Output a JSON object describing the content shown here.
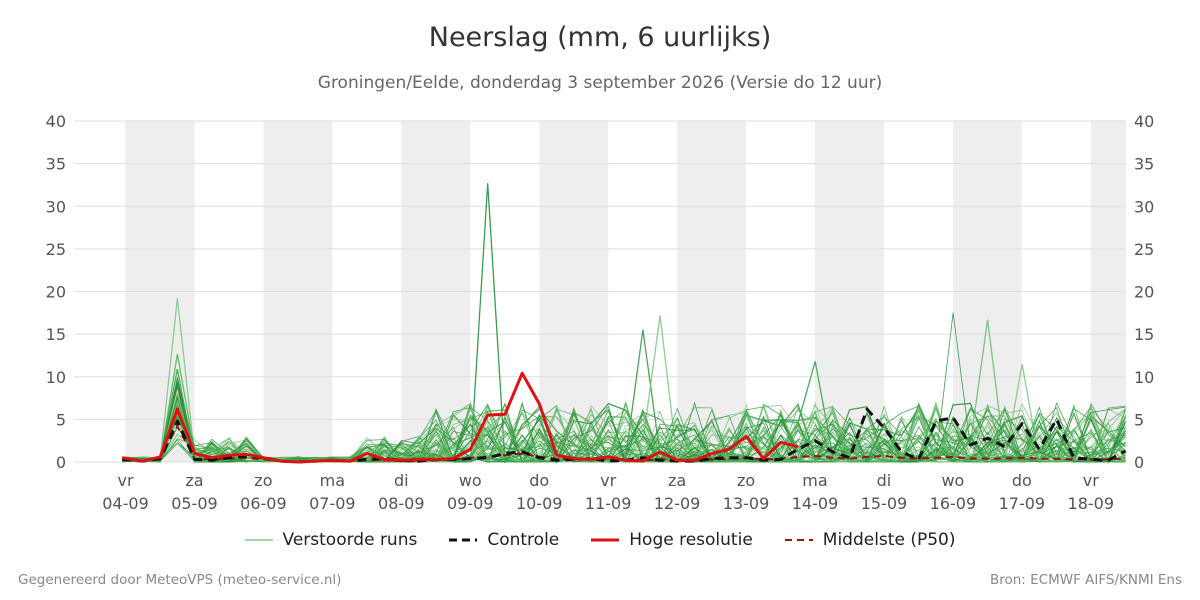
{
  "chart_data": {
    "type": "line",
    "title": "Neerslag (mm, 6 uurlijks)",
    "subtitle": "Groningen/Eelde, donderdag  3 september 2026 (Versie do 12 uur)",
    "ylim": [
      0,
      40
    ],
    "yticks": [
      0,
      5,
      10,
      15,
      20,
      25,
      30,
      35,
      40
    ],
    "grid": true,
    "legend_position": "bottom",
    "x_start_date": "2026-09-03",
    "x_range": [
      "2026-09-03 12:00",
      "2026-09-18 12:00"
    ],
    "x_tick_labels": [
      {
        "day": "vr",
        "date": "04-09"
      },
      {
        "day": "za",
        "date": "05-09"
      },
      {
        "day": "zo",
        "date": "06-09"
      },
      {
        "day": "ma",
        "date": "07-09"
      },
      {
        "day": "di",
        "date": "08-09"
      },
      {
        "day": "wo",
        "date": "09-09"
      },
      {
        "day": "do",
        "date": "10-09"
      },
      {
        "day": "vr",
        "date": "11-09"
      },
      {
        "day": "za",
        "date": "12-09"
      },
      {
        "day": "zo",
        "date": "13-09"
      },
      {
        "day": "ma",
        "date": "14-09"
      },
      {
        "day": "di",
        "date": "15-09"
      },
      {
        "day": "wo",
        "date": "16-09"
      },
      {
        "day": "do",
        "date": "17-09"
      },
      {
        "day": "vr",
        "date": "18-09"
      }
    ],
    "series": [
      {
        "name": "Controle",
        "color": "#111111",
        "style": "dashed",
        "x": [
          0.2,
          0.5,
          0.75,
          1.0,
          1.25,
          1.5,
          1.75,
          2.0,
          2.25,
          2.5,
          2.75,
          3.0,
          3.25,
          3.5,
          3.75,
          4.0,
          4.25,
          4.5,
          4.75,
          5.0,
          5.25,
          5.5,
          5.75,
          6.0,
          6.25,
          6.5,
          6.75,
          7.0,
          7.25,
          7.5,
          7.75,
          8.0,
          8.25,
          8.5,
          8.75,
          9.0,
          9.25,
          9.5,
          9.75,
          10.0,
          10.25,
          10.5,
          10.75,
          11.0,
          11.25,
          11.5,
          11.75,
          12.0,
          12.25,
          12.5,
          12.75,
          13.0,
          13.25,
          13.5,
          13.75,
          14.0,
          14.25,
          14.5,
          14.75,
          15.0
        ],
        "y": [
          0.3,
          0.1,
          0.4,
          4.8,
          0.3,
          0.2,
          0.5,
          0.7,
          0.5,
          0.1,
          0.0,
          0.1,
          0.2,
          0.1,
          0.3,
          0.4,
          0.2,
          0.1,
          0.3,
          0.3,
          0.4,
          0.5,
          1.0,
          1.2,
          0.5,
          0.2,
          0.3,
          0.4,
          0.1,
          0.2,
          0.5,
          0.2,
          0.1,
          0.1,
          0.4,
          0.5,
          0.5,
          0.2,
          0.3,
          1.5,
          2.5,
          1.2,
          0.5,
          6.2,
          4.0,
          1.2,
          0.3,
          4.8,
          5.2,
          2.0,
          2.8,
          1.8,
          4.5,
          1.5,
          5.0,
          0.5,
          0.3,
          0.2,
          1.3,
          0.5
        ]
      },
      {
        "name": "Hoge resolutie",
        "color": "#dd1111",
        "style": "solid",
        "x": [
          0.2,
          0.5,
          0.75,
          1.0,
          1.25,
          1.5,
          1.75,
          2.0,
          2.25,
          2.5,
          2.75,
          3.0,
          3.25,
          3.5,
          3.75,
          4.0,
          4.25,
          4.5,
          4.75,
          5.0,
          5.25,
          5.5,
          5.75,
          6.0,
          6.25,
          6.5,
          6.75,
          7.0,
          7.25,
          7.5,
          7.75,
          8.0,
          8.25,
          8.5,
          8.75,
          9.0,
          9.25,
          9.5,
          9.75,
          10.0
        ],
        "y": [
          0.5,
          0.1,
          0.6,
          6.2,
          1.0,
          0.5,
          0.8,
          0.9,
          0.5,
          0.1,
          0.0,
          0.1,
          0.2,
          0.1,
          1.0,
          0.3,
          0.2,
          0.3,
          0.3,
          0.4,
          1.5,
          5.5,
          5.6,
          10.4,
          6.8,
          0.8,
          0.4,
          0.3,
          0.6,
          0.2,
          0.1,
          1.2,
          0.2,
          0.2,
          1.0,
          1.5,
          3.0,
          0.4,
          2.3,
          1.8
        ]
      },
      {
        "name": "Middelste (P50)",
        "color": "#9b1010",
        "style": "dashed",
        "x": [
          0.2,
          0.5,
          0.75,
          1.0,
          1.25,
          1.5,
          1.75,
          2.0,
          2.25,
          2.5,
          2.75,
          3.0,
          3.25,
          3.5,
          3.75,
          4.0,
          4.25,
          4.5,
          4.75,
          5.0,
          5.25,
          5.5,
          5.75,
          6.0,
          6.25,
          6.5,
          6.75,
          7.0,
          7.25,
          7.5,
          7.75,
          8.0,
          8.25,
          8.5,
          8.75,
          9.0,
          9.25,
          9.5,
          9.75,
          10.0,
          10.25,
          10.5,
          10.75,
          11.0,
          11.25,
          11.5,
          11.75,
          12.0,
          12.25,
          12.5,
          12.75,
          13.0,
          13.25,
          13.5,
          13.75,
          14.0,
          14.25,
          14.5,
          14.75,
          15.0
        ],
        "y": [
          0.4,
          0.1,
          0.5,
          4.2,
          0.4,
          0.3,
          0.4,
          0.5,
          0.3,
          0.1,
          0.0,
          0.1,
          0.1,
          0.1,
          0.3,
          0.2,
          0.1,
          0.1,
          0.2,
          0.3,
          0.5,
          0.6,
          0.8,
          1.0,
          0.6,
          0.4,
          0.3,
          0.3,
          0.3,
          0.2,
          0.2,
          0.3,
          0.2,
          0.2,
          0.3,
          0.4,
          0.5,
          0.3,
          0.4,
          0.6,
          0.7,
          0.5,
          0.4,
          0.6,
          0.7,
          0.5,
          0.4,
          0.5,
          0.6,
          0.4,
          0.4,
          0.4,
          0.5,
          0.4,
          0.4,
          0.3,
          0.3,
          0.3,
          0.4,
          0.4
        ]
      }
    ],
    "ensemble_member_count": 50
  },
  "legend": {
    "ensemble": "Verstoorde runs",
    "control": "Controle",
    "highres": "Hoge resolutie",
    "median": "Middelste (P50)"
  },
  "footer": {
    "left": "Gegenereerd door MeteoVPS (meteo-service.nl)",
    "right": "Bron: ECMWF AIFS/KNMI Ens"
  },
  "colors": {
    "weekend_band": "#eeeeee",
    "grid": "#dddddd",
    "ensemble_palette": [
      "#4caf50",
      "#2e9e44",
      "#1b8a34",
      "#66bb6a",
      "#388e3c",
      "#7cc47f"
    ]
  }
}
